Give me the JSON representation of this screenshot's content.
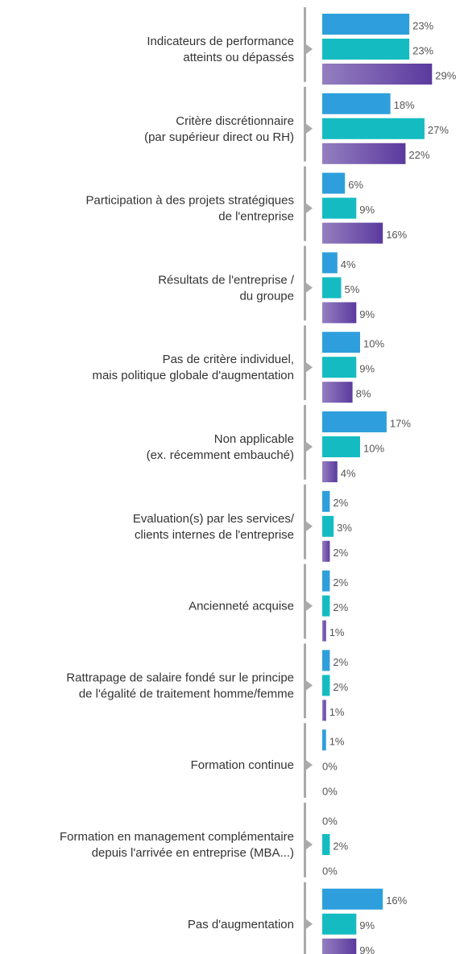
{
  "chart_data": {
    "type": "bar",
    "orientation": "horizontal",
    "categories": [
      "Indicateurs de performance\natteints ou dépassés",
      "Critère discrétionnaire\n(par supérieur direct ou RH)",
      "Participation à des projets stratégiques\nde l'entreprise",
      "Résultats de l'entreprise /\ndu groupe",
      "Pas de critère individuel,\nmais politique globale d'augmentation",
      "Non applicable\n(ex. récemment embauché)",
      "Evaluation(s) par les services/\nclients internes de l'entreprise",
      "Ancienneté acquise",
      "Rattrapage de salaire fondé sur le principe\nde l'égalité de traitement homme/femme",
      "Formation continue",
      "Formation en management complémentaire\ndepuis l'arrivée en entreprise (MBA...)",
      "Pas d'augmentation"
    ],
    "series": [
      {
        "color": "#2e9fdc",
        "values": [
          23,
          18,
          6,
          4,
          10,
          17,
          2,
          2,
          2,
          1,
          0,
          16
        ],
        "value_labels": [
          "23%",
          "18%",
          "6%",
          "4%",
          "10%",
          "17%",
          "2%",
          "2%",
          "2%",
          "1%",
          "0%",
          "16%"
        ]
      },
      {
        "color": "#14bcc1",
        "values": [
          23,
          27,
          9,
          5,
          9,
          10,
          3,
          2,
          2,
          0,
          2,
          9
        ],
        "value_labels": [
          "23%",
          "27%",
          "9%",
          "5%",
          "9%",
          "10%",
          "3%",
          "2%",
          "2%",
          "0%",
          "2%",
          "9%"
        ]
      },
      {
        "color": "#5b3a9e",
        "gradient": true,
        "values": [
          29,
          22,
          16,
          9,
          8,
          4,
          2,
          1,
          1,
          0,
          0,
          9
        ],
        "value_labels": [
          "29%",
          "22%",
          "16%",
          "9%",
          "8%",
          "4%",
          "2%",
          "1%",
          "1%",
          "0%",
          "0%",
          "9%"
        ]
      }
    ],
    "xlim": [
      0,
      30
    ]
  }
}
